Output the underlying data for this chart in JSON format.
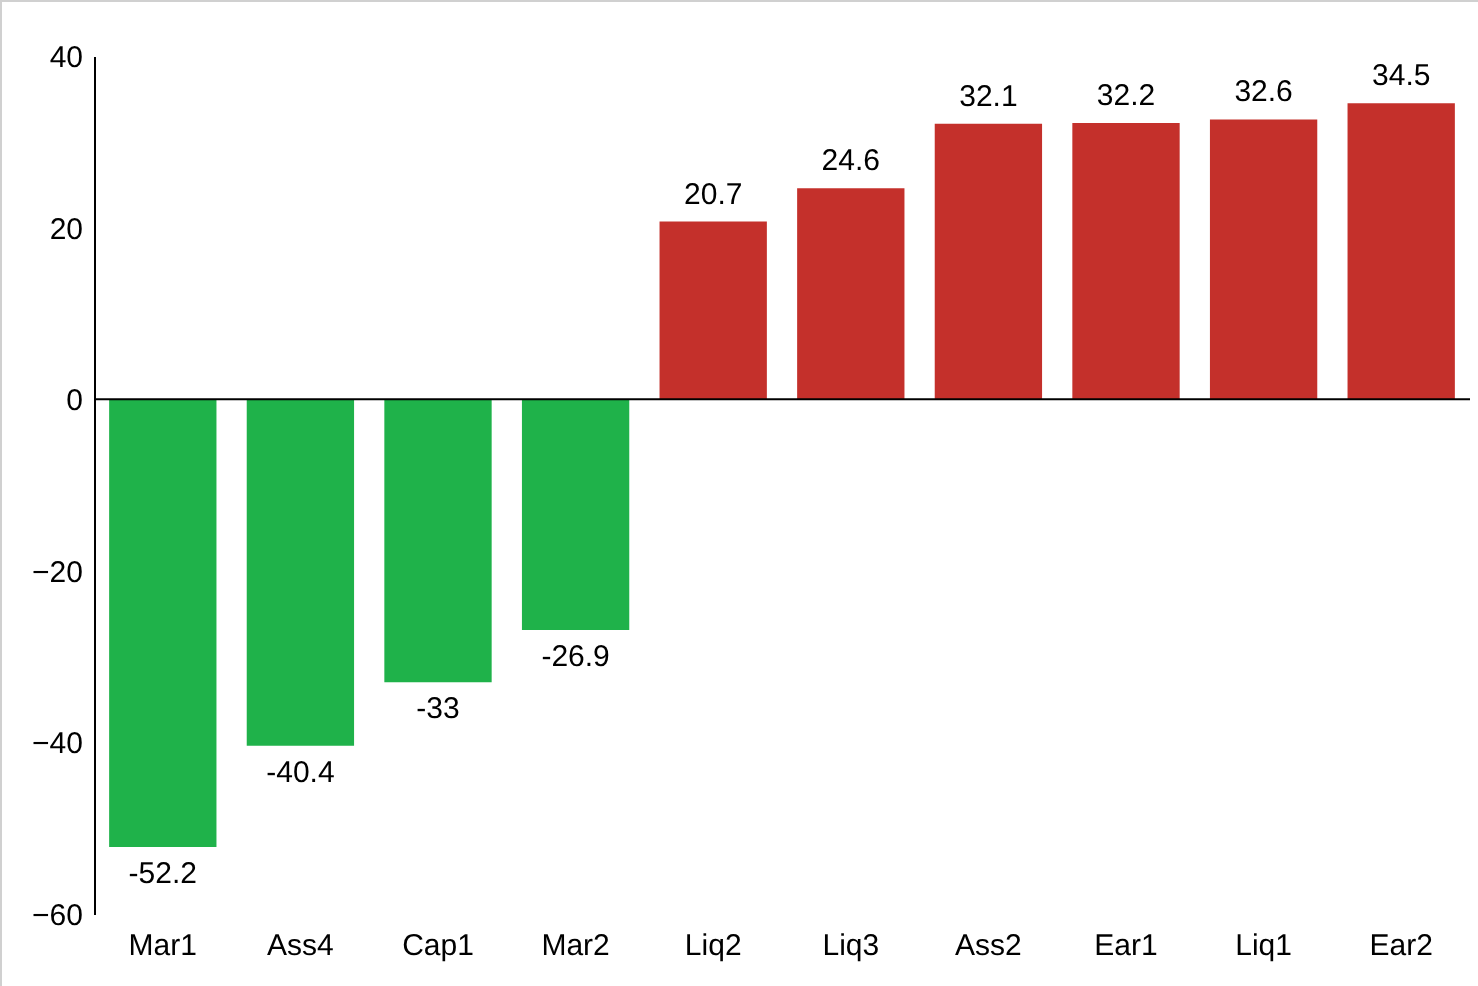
{
  "chart_data": {
    "type": "bar",
    "categories": [
      "Mar1",
      "Ass4",
      "Cap1",
      "Mar2",
      "Liq2",
      "Liq3",
      "Ass2",
      "Ear1",
      "Liq1",
      "Ear2"
    ],
    "values": [
      -52.2,
      -40.4,
      -33,
      -26.9,
      20.7,
      24.6,
      32.1,
      32.2,
      32.6,
      34.5
    ],
    "colors": [
      "#1fb24a",
      "#1fb24a",
      "#1fb24a",
      "#1fb24a",
      "#c4302b",
      "#c4302b",
      "#c4302b",
      "#c4302b",
      "#c4302b",
      "#c4302b"
    ],
    "ylim": [
      -60,
      40
    ],
    "yticks": [
      -60,
      -40,
      -20,
      0,
      20,
      40
    ],
    "ref_lines": [
      {
        "axis": "y",
        "value": 0,
        "color": "#000000"
      }
    ],
    "data_labels": true
  }
}
